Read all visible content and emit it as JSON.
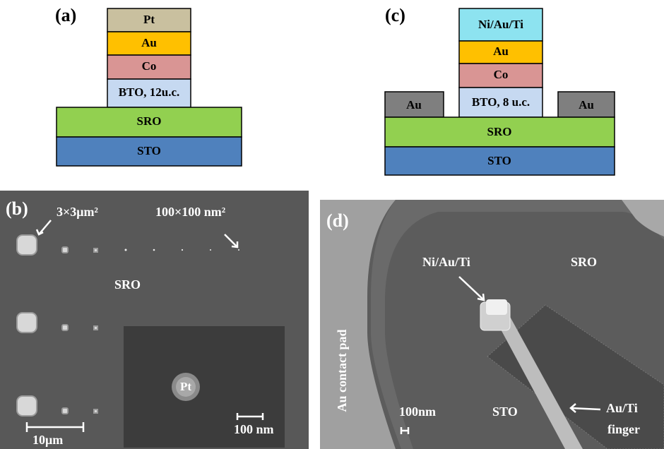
{
  "panel_a": {
    "label": "(a)",
    "layers": [
      "Pt",
      "Au",
      "Co",
      "BTO, 12u.c.",
      "SRO",
      "STO"
    ]
  },
  "panel_c": {
    "label": "(c)",
    "layers": [
      "Ni/Au/Ti",
      "Au",
      "Co",
      "BTO, 8 u.c.",
      "SRO",
      "STO"
    ],
    "contacts": [
      "Au",
      "Au"
    ]
  },
  "panel_b": {
    "label": "(b)",
    "size_large": "3×3μm²",
    "size_small": "100×100 nm²",
    "region": "SRO",
    "inset_label": "Pt",
    "inset_scale": "100 nm",
    "scale": "10μm"
  },
  "panel_d": {
    "label": "(d)",
    "pillar": "Ni/Au/Ti",
    "region_top": "SRO",
    "pad": "Au contact pad",
    "scale": "100nm",
    "region_bottom": "STO",
    "finger": [
      "Au/Ti",
      "finger"
    ]
  }
}
